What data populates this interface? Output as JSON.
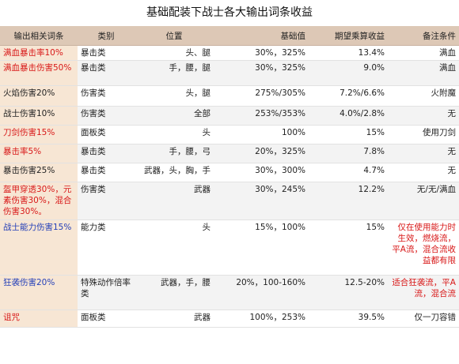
{
  "title": "基础配装下战士各大输出词条收益",
  "headers": [
    "输出相关词条",
    "类别",
    "位置",
    "基础值",
    "期望乘算收益",
    "备注条件"
  ],
  "rows": [
    {
      "name": "满血暴击率10%",
      "name_color": "red",
      "category": "暴击类",
      "position": "头、腿",
      "base": "30%，325%",
      "gain": "13.4%",
      "note": "满血",
      "note_color": "dark"
    },
    {
      "name": "满血暴击伤害50%",
      "name_color": "red",
      "category": "暴击类",
      "position": "手，腰，腿",
      "base": "30%，325%",
      "gain": "9.0%",
      "note": "满血",
      "note_color": "dark"
    },
    {
      "name": "火焰伤害20%",
      "name_color": "dark",
      "category": "伤害类",
      "position": "头，腿",
      "base": "275%/305%",
      "gain": "7.2%/6.6%",
      "note": "火附魔",
      "note_color": "dark"
    },
    {
      "name": "战士伤害10%",
      "name_color": "dark",
      "category": "伤害类",
      "position": "全部",
      "base": "253%/353%",
      "gain": "4.0%/2.8%",
      "note": "无",
      "note_color": "dark"
    },
    {
      "name": "刀剑伤害15%",
      "name_color": "red",
      "category": "面板类",
      "position": "头",
      "base": "100%",
      "gain": "15%",
      "note": "使用刀剑",
      "note_color": "dark"
    },
    {
      "name": "暴击率5%",
      "name_color": "red",
      "category": "暴击类",
      "position": "手，腰，弓",
      "base": "20%，325%",
      "gain": "7.8%",
      "note": "无",
      "note_color": "dark"
    },
    {
      "name": "暴击伤害25%",
      "name_color": "dark",
      "category": "暴击类",
      "position": "武器，头，胸，手",
      "base": "30%，300%",
      "gain": "4.7%",
      "note": "无",
      "note_color": "dark"
    },
    {
      "name": "盔甲穿透30%，元素伤害30%，混合伤害30%。",
      "name_color": "red",
      "category": "伤害类",
      "position": "武器",
      "base": "30%，245%",
      "gain": "12.2%",
      "note": "无/无/满血",
      "note_color": "dark"
    },
    {
      "name": "战士能力伤害15%",
      "name_color": "blue",
      "category": "能力类",
      "position": "头",
      "base": "15%，100%",
      "gain": "15%",
      "note": "仅在使用能力时生效，燃烧流，平A流，混合流收益都有限",
      "note_color": "red"
    },
    {
      "name": "狂袭伤害20%",
      "name_color": "blue",
      "category": "特殊动作倍率类",
      "position": "武器，手，腰",
      "base": "20%，100-160%",
      "gain": "12.5-20%",
      "note": "适合狂袭流，平A流，混合流",
      "note_color": "red"
    },
    {
      "name": "诅咒",
      "name_color": "red",
      "category": "面板类",
      "position": "武器",
      "base": "100%，253%",
      "gain": "39.5%",
      "note": "仅一刀容错",
      "note_color": "dark"
    }
  ]
}
